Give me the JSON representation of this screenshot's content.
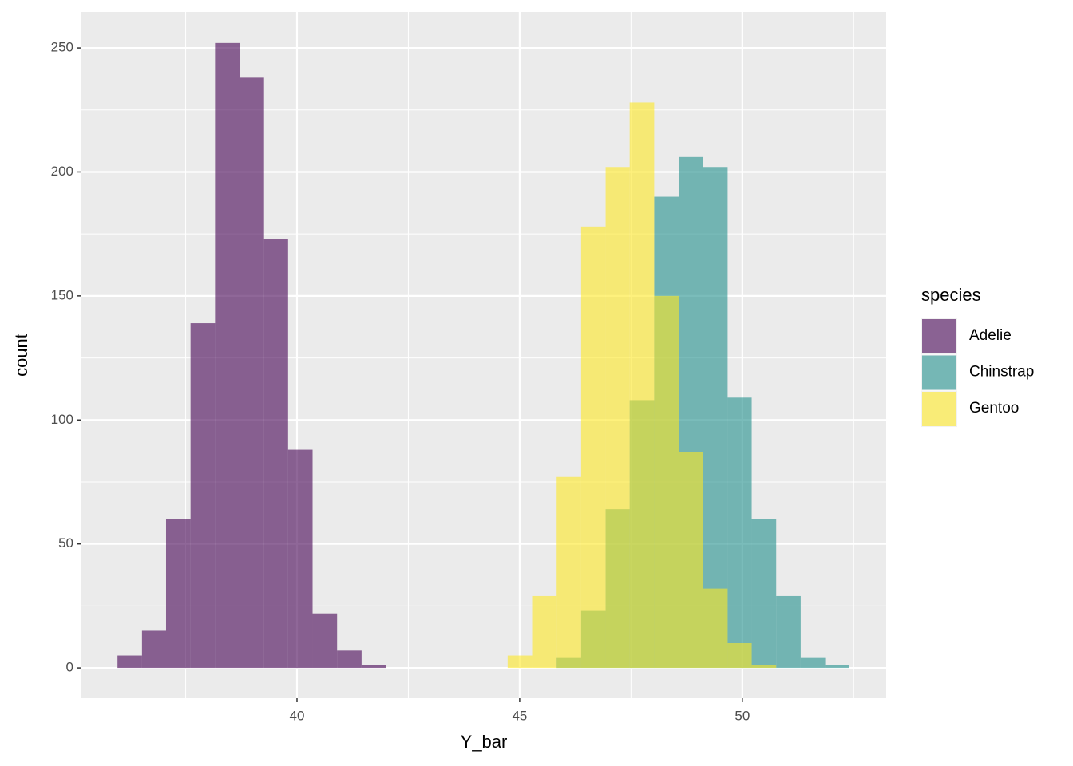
{
  "chart_data": {
    "type": "histogram",
    "xlabel": "Y_bar",
    "ylabel": "count",
    "bins": [
      35.97,
      36.52,
      37.06,
      37.61,
      38.16,
      38.71,
      39.26,
      39.8,
      40.35,
      40.9,
      41.45,
      41.99,
      42.54,
      43.09,
      43.64,
      44.19,
      44.73,
      45.28,
      45.83,
      46.38,
      46.93,
      47.47,
      48.02,
      48.57,
      49.12,
      49.67,
      50.21,
      50.76,
      51.31,
      51.86,
      52.4
    ],
    "series": [
      {
        "name": "Adelie",
        "color": "#440154",
        "values": [
          5,
          15,
          60,
          139,
          252,
          238,
          173,
          88,
          22,
          7,
          1,
          0,
          0,
          0,
          0,
          0,
          0,
          0,
          0,
          0,
          0,
          0,
          0,
          0,
          0,
          0,
          0,
          0,
          0,
          0
        ]
      },
      {
        "name": "Chinstrap",
        "color": "#21908C",
        "values": [
          0,
          0,
          0,
          0,
          0,
          0,
          0,
          0,
          0,
          0,
          0,
          0,
          0,
          0,
          0,
          0,
          0,
          0,
          4,
          23,
          64,
          108,
          190,
          206,
          202,
          109,
          60,
          29,
          4,
          1
        ]
      },
      {
        "name": "Gentoo",
        "color": "#FDE725",
        "values": [
          0,
          0,
          0,
          0,
          0,
          0,
          0,
          0,
          0,
          0,
          0,
          0,
          0,
          0,
          0,
          0,
          5,
          29,
          77,
          178,
          202,
          228,
          150,
          87,
          32,
          10,
          1,
          0,
          0,
          0
        ]
      }
    ],
    "opacity": 0.6,
    "legend_title": "species",
    "legend": "right",
    "xlim": [
      35.16,
      53.23
    ],
    "xticks": [
      40,
      45,
      50
    ],
    "xminor": [
      37.5,
      42.5,
      47.5,
      52.5
    ],
    "ylim": [
      -12.2,
      264.5
    ],
    "yticks": [
      0,
      50,
      100,
      150,
      200,
      250
    ],
    "yminor": [
      25,
      75,
      125,
      175,
      225
    ],
    "grid": true
  }
}
